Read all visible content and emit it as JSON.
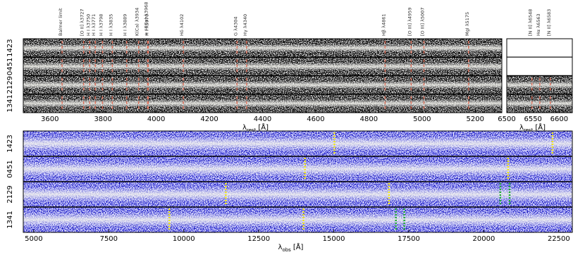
{
  "chart_data": [
    {
      "type": "spectrum2d",
      "xlabel": [
        "λ",
        "rest",
        "[Å]"
      ],
      "xlim": [
        3500,
        5300
      ],
      "xticks": [
        3600,
        3800,
        4000,
        4200,
        4400,
        4600,
        4800,
        5000,
        5200
      ],
      "rows": [
        "1423",
        "0451",
        "2129",
        "1341"
      ],
      "marker_color": "#e0705a",
      "lines": [
        {
          "label": "Balmer limit",
          "x": 3646
        },
        {
          "label": "[O II] λ3727",
          "x": 3727
        },
        {
          "label": "H I λ3750",
          "x": 3750
        },
        {
          "label": "H I λ3771",
          "x": 3771
        },
        {
          "label": "H I λ3798",
          "x": 3798
        },
        {
          "label": "H I λ3835",
          "x": 3835
        },
        {
          "label": "H I λ3889",
          "x": 3889
        },
        {
          "label": "K(Ca) λ3934",
          "x": 3934
        },
        {
          "label": "H I λ3970",
          "x": 3970
        },
        {
          "label": "+ H(Ca) λ3968",
          "x": 3968
        },
        {
          "label": "Hδ λ4102",
          "x": 4102
        },
        {
          "label": "G λ4304",
          "x": 4304
        },
        {
          "label": "Hγ λ4340",
          "x": 4340
        },
        {
          "label": "Hβ λ4861",
          "x": 4861
        },
        {
          "label": "[O III] λ4959",
          "x": 4959
        },
        {
          "label": "[O III] λ5007",
          "x": 5007
        },
        {
          "label": "MgI λ5175",
          "x": 5175
        }
      ]
    },
    {
      "type": "spectrum2d",
      "xlabel": [
        "λ",
        "rest",
        "[Å]"
      ],
      "xlim": [
        6500,
        6625
      ],
      "xticks": [
        6500,
        6550,
        6600
      ],
      "marker_color": "#e0705a",
      "blank_rows": [
        "1423",
        "0451"
      ],
      "lines": [
        {
          "label": "[N II] λ6548",
          "x": 6548
        },
        {
          "label": "Hα λ6563",
          "x": 6563
        },
        {
          "label": "[N II] λ6583",
          "x": 6583
        }
      ]
    },
    {
      "type": "spectrum2d-obs",
      "xlabel": [
        "λ",
        "obs",
        "[Å]"
      ],
      "xlim": [
        4650,
        22950
      ],
      "xticks": [
        5000,
        7500,
        10000,
        12500,
        15000,
        17500,
        20000,
        22500
      ],
      "yellow_color": "#f4ea10",
      "green_color": "#22b030",
      "rows": [
        {
          "name": "1423",
          "yellow": [
            15020,
            22290
          ],
          "green": []
        },
        {
          "name": "0451",
          "yellow": [
            14040,
            20810
          ],
          "green": []
        },
        {
          "name": "2129",
          "yellow": [
            11400,
            16840
          ],
          "green": [
            20550,
            20860
          ]
        },
        {
          "name": "1341",
          "yellow": [
            9520,
            13990
          ],
          "green": [
            17070,
            17350
          ]
        }
      ]
    }
  ]
}
